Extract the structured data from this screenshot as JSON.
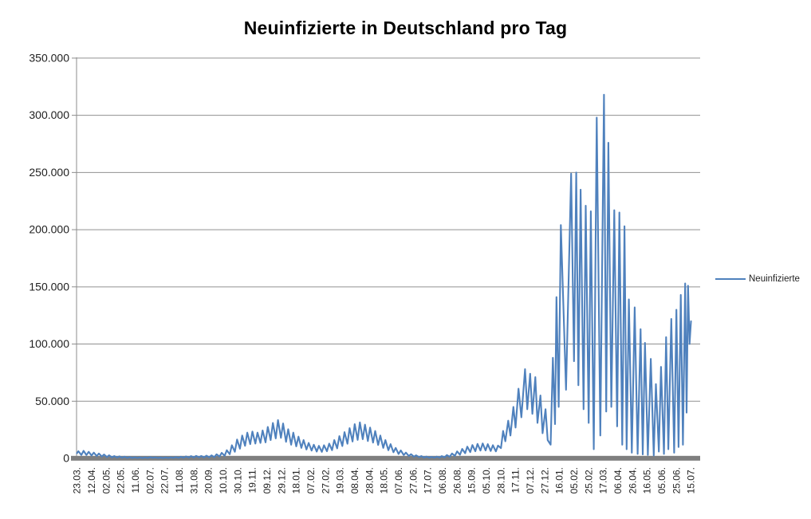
{
  "header": {
    "title": "Neuinfizierte in Deutschland pro Tag"
  },
  "legend": {
    "label": "Neuinfizierte"
  },
  "chart_data": {
    "type": "line",
    "title": "Neuinfizierte in Deutschland pro Tag",
    "xlabel": "",
    "ylabel": "",
    "legend_position": "right",
    "grid": "horizontal-major",
    "ylim": [
      0,
      350000
    ],
    "y_tick_step": 50000,
    "y_ticks": [
      {
        "v": 0,
        "label": "0"
      },
      {
        "v": 50000,
        "label": "50.000"
      },
      {
        "v": 100000,
        "label": "100.000"
      },
      {
        "v": 150000,
        "label": "150.000"
      },
      {
        "v": 200000,
        "label": "200.000"
      },
      {
        "v": 250000,
        "label": "250.000"
      },
      {
        "v": 300000,
        "label": "300.000"
      },
      {
        "v": 350000,
        "label": "350.000"
      }
    ],
    "x_domain": [
      0,
      840
    ],
    "x_tick_every": 20,
    "x_tick_labels": [
      "23.03.",
      "12.04.",
      "02.05.",
      "22.05.",
      "11.06.",
      "02.07.",
      "22.07.",
      "11.08.",
      "31.08.",
      "20.09.",
      "10.10.",
      "30.10.",
      "19.11.",
      "09.12.",
      "29.12.",
      "18.01.",
      "07.02.",
      "27.02.",
      "19.03.",
      "08.04.",
      "28.04.",
      "18.05.",
      "07.06.",
      "27.06.",
      "17.07.",
      "06.08.",
      "26.08.",
      "15.09.",
      "05.10.",
      "28.10.",
      "17.11.",
      "07.12.",
      "27.12.",
      "16.01.",
      "05.02.",
      "25.02.",
      "17.03.",
      "06.04.",
      "26.04.",
      "16.05.",
      "05.06.",
      "25.06.",
      "15.07."
    ],
    "colors": {
      "line": "#4F81BD",
      "gridline": "#909090",
      "axis": "#8C8C8C",
      "axis_band": "#7F7F7F",
      "tick_text": "#1F1F1F",
      "title_text": "#000000",
      "background": "#FFFFFF"
    },
    "series": [
      {
        "name": "Neuinfizierte",
        "color": "#4F81BD",
        "points": [
          [
            0,
            4500
          ],
          [
            2,
            6300
          ],
          [
            6,
            3000
          ],
          [
            9,
            6600
          ],
          [
            13,
            2900
          ],
          [
            16,
            5800
          ],
          [
            20,
            2500
          ],
          [
            23,
            5100
          ],
          [
            27,
            2100
          ],
          [
            30,
            4300
          ],
          [
            34,
            1700
          ],
          [
            37,
            3400
          ],
          [
            41,
            1200
          ],
          [
            44,
            2700
          ],
          [
            48,
            900
          ],
          [
            51,
            2100
          ],
          [
            55,
            700
          ],
          [
            58,
            1800
          ],
          [
            62,
            550
          ],
          [
            65,
            1500
          ],
          [
            69,
            450
          ],
          [
            72,
            1250
          ],
          [
            76,
            380
          ],
          [
            79,
            1050
          ],
          [
            83,
            320
          ],
          [
            86,
            950
          ],
          [
            90,
            300
          ],
          [
            93,
            1000
          ],
          [
            97,
            360
          ],
          [
            100,
            1100
          ],
          [
            104,
            420
          ],
          [
            107,
            950
          ],
          [
            111,
            330
          ],
          [
            114,
            850
          ],
          [
            118,
            300
          ],
          [
            121,
            900
          ],
          [
            125,
            330
          ],
          [
            128,
            1000
          ],
          [
            132,
            400
          ],
          [
            135,
            1250
          ],
          [
            139,
            500
          ],
          [
            142,
            1450
          ],
          [
            146,
            620
          ],
          [
            149,
            1750
          ],
          [
            153,
            750
          ],
          [
            156,
            2050
          ],
          [
            160,
            850
          ],
          [
            163,
            2250
          ],
          [
            167,
            950
          ],
          [
            170,
            2150
          ],
          [
            174,
            900
          ],
          [
            177,
            2350
          ],
          [
            181,
            1000
          ],
          [
            184,
            2650
          ],
          [
            188,
            1150
          ],
          [
            191,
            3600
          ],
          [
            195,
            1600
          ],
          [
            198,
            4900
          ],
          [
            202,
            2300
          ],
          [
            205,
            7200
          ],
          [
            209,
            3600
          ],
          [
            212,
            11500
          ],
          [
            216,
            5800
          ],
          [
            219,
            16500
          ],
          [
            223,
            8500
          ],
          [
            226,
            20000
          ],
          [
            230,
            11000
          ],
          [
            233,
            22500
          ],
          [
            237,
            12500
          ],
          [
            240,
            23500
          ],
          [
            244,
            13000
          ],
          [
            247,
            22500
          ],
          [
            251,
            13500
          ],
          [
            254,
            24500
          ],
          [
            258,
            14000
          ],
          [
            261,
            27500
          ],
          [
            265,
            16000
          ],
          [
            268,
            31000
          ],
          [
            272,
            17500
          ],
          [
            275,
            33500
          ],
          [
            279,
            18000
          ],
          [
            282,
            30500
          ],
          [
            286,
            14500
          ],
          [
            289,
            25500
          ],
          [
            293,
            12000
          ],
          [
            296,
            22500
          ],
          [
            300,
            10500
          ],
          [
            303,
            19000
          ],
          [
            307,
            9200
          ],
          [
            310,
            16000
          ],
          [
            314,
            7800
          ],
          [
            317,
            13500
          ],
          [
            321,
            6800
          ],
          [
            324,
            12000
          ],
          [
            328,
            6000
          ],
          [
            331,
            11000
          ],
          [
            335,
            5700
          ],
          [
            338,
            11500
          ],
          [
            342,
            6300
          ],
          [
            345,
            13000
          ],
          [
            349,
            7200
          ],
          [
            352,
            16000
          ],
          [
            356,
            8800
          ],
          [
            359,
            19500
          ],
          [
            363,
            10800
          ],
          [
            366,
            23000
          ],
          [
            370,
            12800
          ],
          [
            373,
            26500
          ],
          [
            377,
            14800
          ],
          [
            380,
            30000
          ],
          [
            384,
            16200
          ],
          [
            387,
            31500
          ],
          [
            391,
            16800
          ],
          [
            394,
            29500
          ],
          [
            398,
            15200
          ],
          [
            401,
            27000
          ],
          [
            405,
            13800
          ],
          [
            408,
            24000
          ],
          [
            412,
            11800
          ],
          [
            415,
            20000
          ],
          [
            419,
            9200
          ],
          [
            422,
            16000
          ],
          [
            426,
            7200
          ],
          [
            429,
            12500
          ],
          [
            433,
            5400
          ],
          [
            436,
            9200
          ],
          [
            440,
            3900
          ],
          [
            443,
            7000
          ],
          [
            447,
            2900
          ],
          [
            450,
            5100
          ],
          [
            454,
            2100
          ],
          [
            457,
            3700
          ],
          [
            461,
            1500
          ],
          [
            464,
            2700
          ],
          [
            468,
            1100
          ],
          [
            471,
            2000
          ],
          [
            475,
            800
          ],
          [
            478,
            1600
          ],
          [
            482,
            650
          ],
          [
            485,
            1400
          ],
          [
            489,
            600
          ],
          [
            492,
            1500
          ],
          [
            496,
            700
          ],
          [
            499,
            2000
          ],
          [
            503,
            950
          ],
          [
            506,
            2900
          ],
          [
            510,
            1450
          ],
          [
            513,
            4300
          ],
          [
            517,
            2200
          ],
          [
            520,
            6100
          ],
          [
            524,
            3200
          ],
          [
            527,
            8300
          ],
          [
            531,
            4500
          ],
          [
            534,
            10300
          ],
          [
            538,
            5500
          ],
          [
            541,
            11700
          ],
          [
            545,
            6300
          ],
          [
            548,
            12700
          ],
          [
            552,
            6800
          ],
          [
            555,
            13100
          ],
          [
            559,
            7000
          ],
          [
            562,
            12500
          ],
          [
            566,
            6500
          ],
          [
            569,
            11600
          ],
          [
            573,
            6100
          ],
          [
            576,
            11200
          ],
          [
            580,
            9000
          ],
          [
            583,
            24000
          ],
          [
            586,
            15000
          ],
          [
            590,
            33000
          ],
          [
            593,
            20000
          ],
          [
            597,
            45000
          ],
          [
            600,
            27000
          ],
          [
            604,
            61000
          ],
          [
            608,
            36000
          ],
          [
            613,
            78000
          ],
          [
            616,
            43000
          ],
          [
            620,
            74000
          ],
          [
            623,
            39000
          ],
          [
            627,
            71000
          ],
          [
            630,
            31000
          ],
          [
            634,
            55000
          ],
          [
            637,
            22000
          ],
          [
            641,
            43000
          ],
          [
            644,
            16000
          ],
          [
            648,
            12000
          ],
          [
            651,
            88000
          ],
          [
            654,
            30000
          ],
          [
            656,
            141000
          ],
          [
            659,
            45000
          ],
          [
            662,
            204000
          ],
          [
            669,
            60000
          ],
          [
            676,
            249000
          ],
          [
            680,
            85000
          ],
          [
            683,
            250000
          ],
          [
            686,
            64000
          ],
          [
            689,
            235000
          ],
          [
            693,
            43000
          ],
          [
            696,
            221000
          ],
          [
            700,
            31000
          ],
          [
            703,
            216000
          ],
          [
            707,
            8000
          ],
          [
            711,
            298000
          ],
          [
            716,
            20000
          ],
          [
            721,
            318000
          ],
          [
            724,
            41000
          ],
          [
            727,
            276000
          ],
          [
            731,
            45000
          ],
          [
            735,
            217000
          ],
          [
            739,
            28000
          ],
          [
            742,
            215000
          ],
          [
            746,
            12000
          ],
          [
            749,
            203000
          ],
          [
            752,
            8000
          ],
          [
            755,
            139000
          ],
          [
            759,
            5000
          ],
          [
            763,
            132000
          ],
          [
            767,
            4000
          ],
          [
            771,
            113000
          ],
          [
            774,
            3500
          ],
          [
            777,
            101000
          ],
          [
            781,
            3000
          ],
          [
            785,
            87000
          ],
          [
            789,
            2500
          ],
          [
            792,
            65000
          ],
          [
            796,
            6000
          ],
          [
            799,
            80000
          ],
          [
            803,
            4000
          ],
          [
            806,
            106000
          ],
          [
            809,
            8000
          ],
          [
            813,
            122000
          ],
          [
            817,
            5000
          ],
          [
            820,
            130000
          ],
          [
            823,
            10000
          ],
          [
            826,
            143000
          ],
          [
            829,
            12000
          ],
          [
            832,
            153000
          ],
          [
            834,
            40000
          ],
          [
            836,
            151000
          ],
          [
            838,
            100000
          ],
          [
            840,
            120000
          ]
        ]
      }
    ]
  }
}
